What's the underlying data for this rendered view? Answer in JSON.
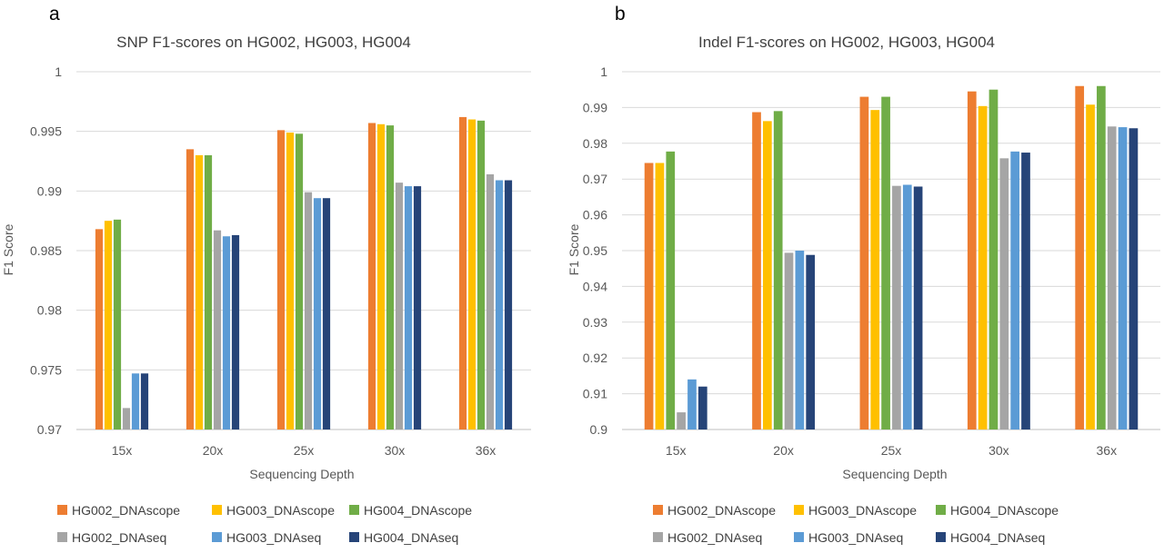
{
  "chart_data": [
    {
      "panel": "a",
      "type": "bar",
      "title": "SNP F1-scores on HG002, HG003, HG004",
      "xlabel": "Sequencing Depth",
      "ylabel": "F1 Score",
      "ylim": [
        0.97,
        1
      ],
      "yticks": [
        0.97,
        0.975,
        0.98,
        0.985,
        0.99,
        0.995,
        1
      ],
      "ytick_labels": [
        "0.97",
        "0.975",
        "0.98",
        "0.985",
        "0.99",
        "0.995",
        "1"
      ],
      "grid": true,
      "legend_position": "bottom",
      "categories": [
        "15x",
        "20x",
        "25x",
        "30x",
        "36x"
      ],
      "series": [
        {
          "name": "HG002_DNAscope",
          "color": "#ed7d31",
          "values": [
            0.9868,
            0.9935,
            0.9951,
            0.9957,
            0.9962
          ]
        },
        {
          "name": "HG003_DNAscope",
          "color": "#ffc000",
          "values": [
            0.9875,
            0.993,
            0.9949,
            0.9956,
            0.996
          ]
        },
        {
          "name": "HG004_DNAscope",
          "color": "#70ad47",
          "values": [
            0.9876,
            0.993,
            0.9948,
            0.9955,
            0.9959
          ]
        },
        {
          "name": "HG002_DNAseq",
          "color": "#a5a5a5",
          "values": [
            0.9718,
            0.9867,
            0.9899,
            0.9907,
            0.9914
          ]
        },
        {
          "name": "HG003_DNAseq",
          "color": "#5b9bd5",
          "values": [
            0.9747,
            0.9862,
            0.9894,
            0.9904,
            0.9909
          ]
        },
        {
          "name": "HG004_DNAseq",
          "color": "#264478",
          "values": [
            0.9747,
            0.9863,
            0.9894,
            0.9904,
            0.9909
          ]
        }
      ]
    },
    {
      "panel": "b",
      "type": "bar",
      "title": "Indel F1-scores on HG002, HG003, HG004",
      "xlabel": "Sequencing Depth",
      "ylabel": "F1 Score",
      "ylim": [
        0.9,
        1
      ],
      "yticks": [
        0.9,
        0.91,
        0.92,
        0.93,
        0.94,
        0.95,
        0.96,
        0.97,
        0.98,
        0.99,
        1
      ],
      "ytick_labels": [
        "0.9",
        "0.91",
        "0.92",
        "0.93",
        "0.94",
        "0.95",
        "0.96",
        "0.97",
        "0.98",
        "0.99",
        "1"
      ],
      "grid": true,
      "legend_position": "bottom",
      "categories": [
        "15x",
        "20x",
        "25x",
        "30x",
        "36x"
      ],
      "series": [
        {
          "name": "HG002_DNAscope",
          "color": "#ed7d31",
          "values": [
            0.9745,
            0.9887,
            0.993,
            0.9945,
            0.996
          ]
        },
        {
          "name": "HG003_DNAscope",
          "color": "#ffc000",
          "values": [
            0.9745,
            0.9862,
            0.9893,
            0.9904,
            0.9908
          ]
        },
        {
          "name": "HG004_DNAscope",
          "color": "#70ad47",
          "values": [
            0.9777,
            0.989,
            0.993,
            0.995,
            0.996
          ]
        },
        {
          "name": "HG002_DNAseq",
          "color": "#a5a5a5",
          "values": [
            0.9048,
            0.9494,
            0.9681,
            0.9758,
            0.9847
          ]
        },
        {
          "name": "HG003_DNAseq",
          "color": "#5b9bd5",
          "values": [
            0.914,
            0.95,
            0.9684,
            0.9777,
            0.9845
          ]
        },
        {
          "name": "HG004_DNAseq",
          "color": "#264478",
          "values": [
            0.912,
            0.9488,
            0.9679,
            0.9774,
            0.9842
          ]
        }
      ]
    }
  ]
}
